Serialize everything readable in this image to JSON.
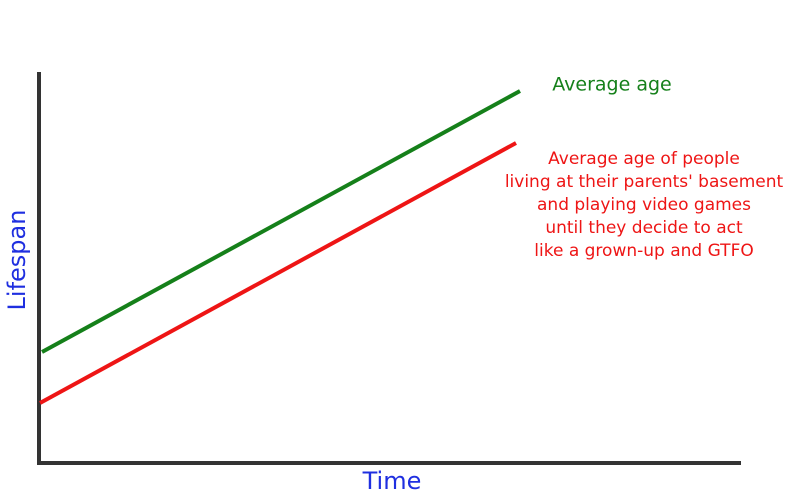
{
  "axes": {
    "x_label": "Time",
    "y_label": "Lifespan",
    "label_color": "#1f2fe0"
  },
  "lines": [
    {
      "label": [
        "Average age"
      ],
      "color": "#15801a"
    },
    {
      "label": [
        "Average age of people",
        "living at their parents' basement",
        "and playing video games",
        "until they decide to act",
        "like a grown-up and GTFO"
      ],
      "color": "#ee1515"
    }
  ]
}
